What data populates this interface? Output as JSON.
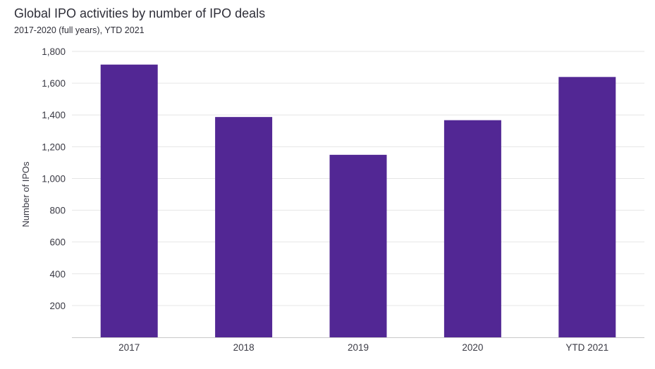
{
  "chart_data": {
    "type": "bar",
    "title": "Global IPO activities by number of IPO deals",
    "subtitle": "2017-2020 (full years), YTD 2021",
    "ylabel": "Number of IPOs",
    "xlabel": "",
    "categories": [
      "2017",
      "2018",
      "2019",
      "2020",
      "YTD 2021"
    ],
    "values": [
      1717,
      1387,
      1149,
      1367,
      1639
    ],
    "ylim": [
      0,
      1800
    ],
    "yticks": [
      200,
      400,
      600,
      800,
      1000,
      1200,
      1400,
      1600,
      1800
    ],
    "ytick_labels": [
      "200",
      "400",
      "600",
      "800",
      "1,000",
      "1,200",
      "1,400",
      "1,600",
      "1,800"
    ],
    "grid": true,
    "legend": "none",
    "colors": {
      "bar": "#522794",
      "grid": "#e6e6e6",
      "baseline": "#c8c8c8",
      "text": "#3a3a44"
    }
  }
}
